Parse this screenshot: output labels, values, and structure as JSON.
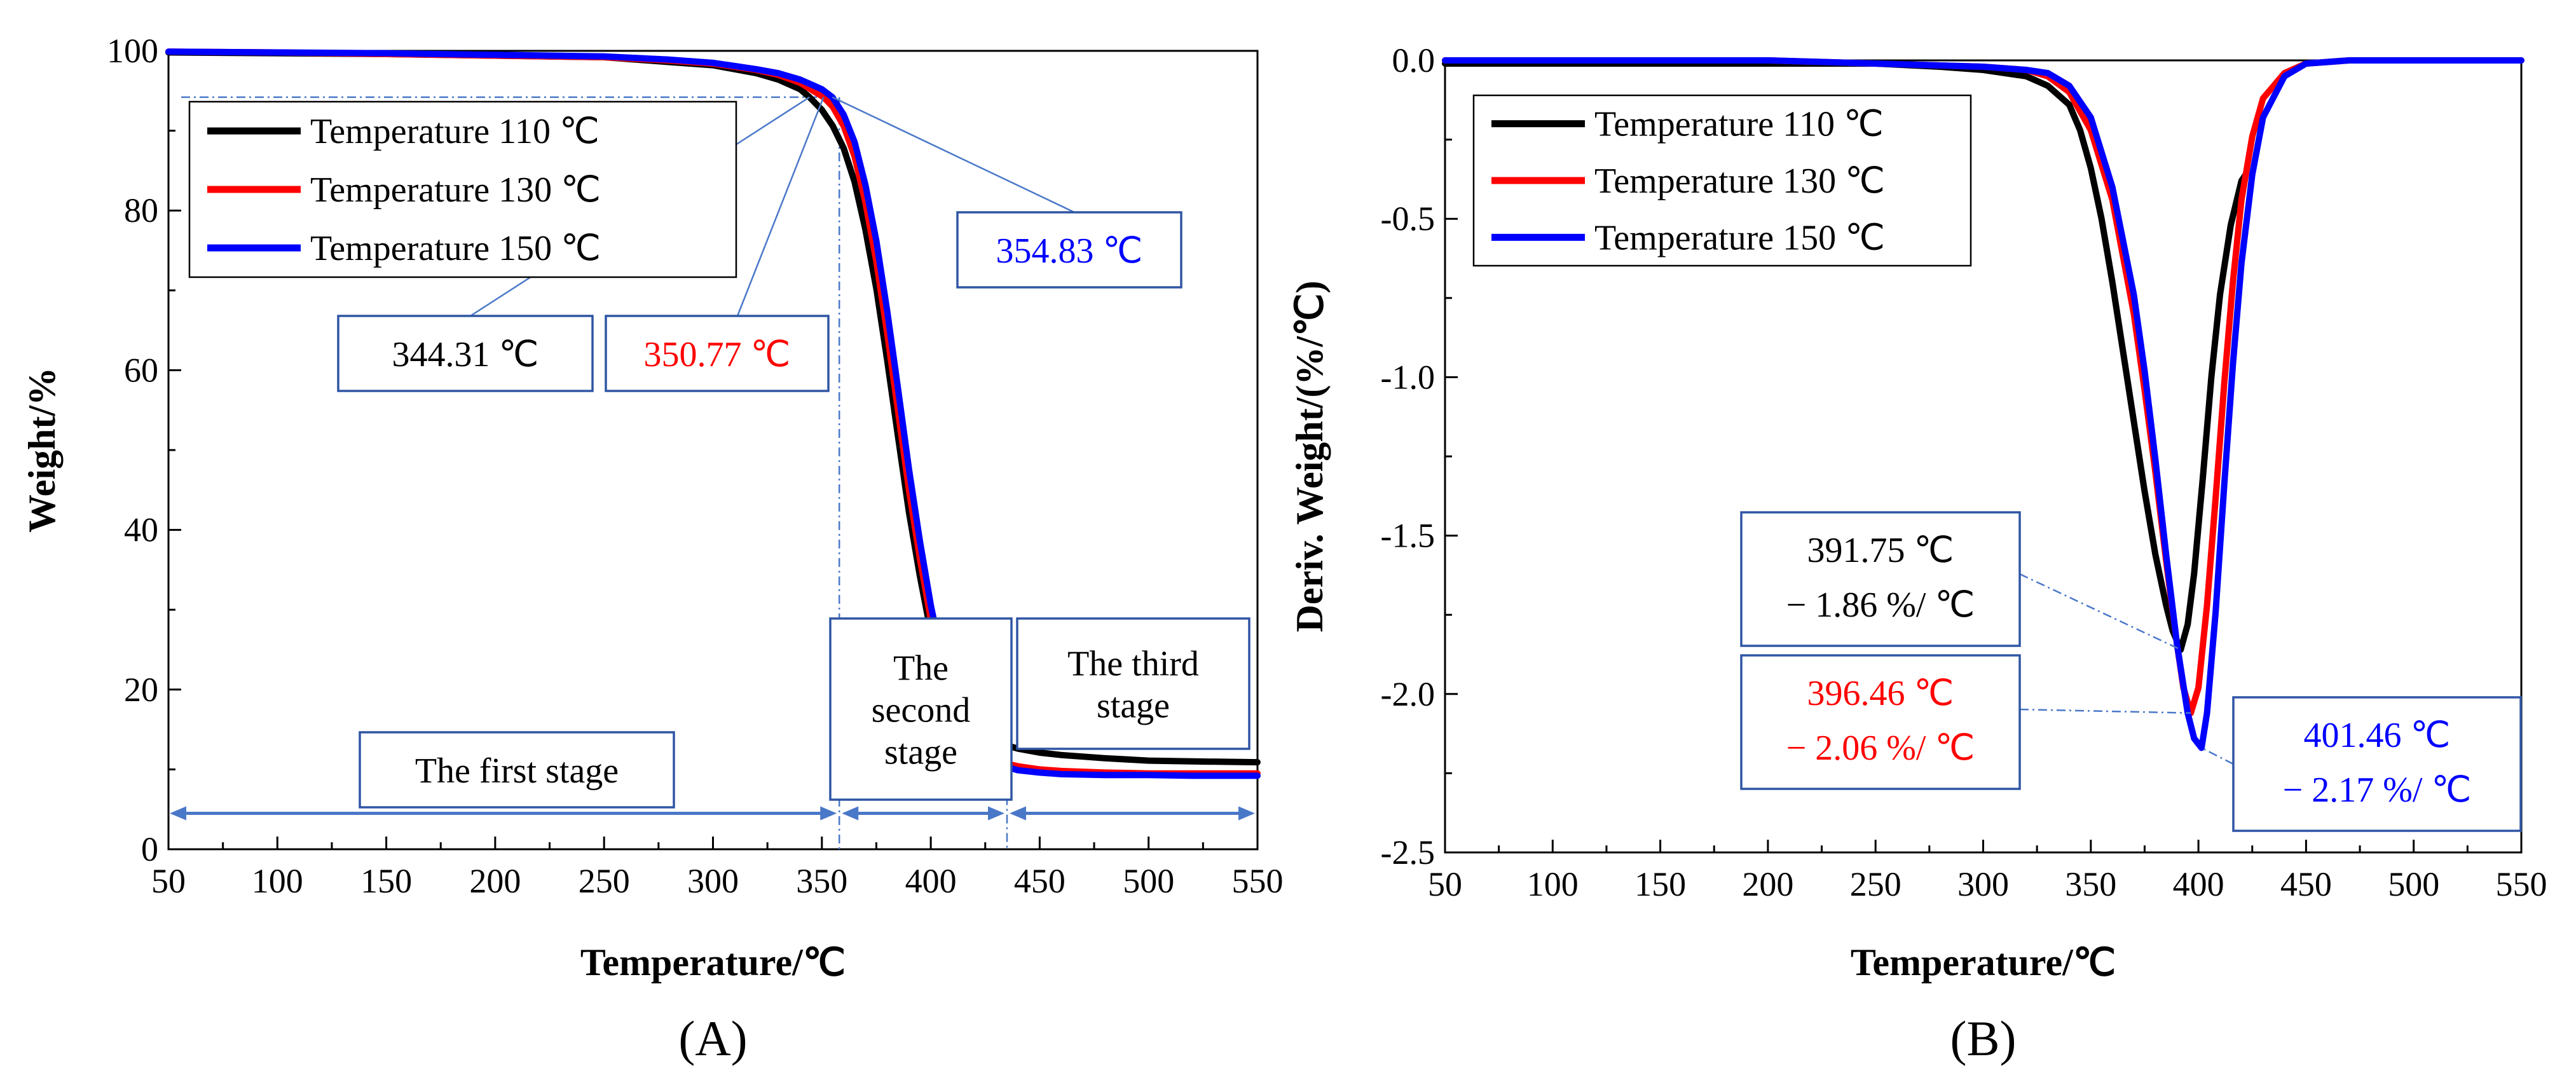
{
  "colors": {
    "series_110": "#000000",
    "series_130": "#ff0000",
    "series_150": "#0000ff",
    "annotation_border": "#2f55a4",
    "guide_line": "#4a78c8",
    "stage_arrow": "#4a78c8"
  },
  "chart_data": [
    {
      "panel": "A",
      "panel_label": "(A)",
      "type": "line",
      "xlabel": "Temperature/℃",
      "ylabel": "Weight/%",
      "xlim": [
        50,
        550
      ],
      "ylim": [
        0,
        100
      ],
      "xticks": [
        50,
        100,
        150,
        200,
        250,
        300,
        350,
        400,
        450,
        500,
        550
      ],
      "yticks": [
        0,
        20,
        40,
        60,
        80,
        100
      ],
      "legend_position": "top-left",
      "grid": false,
      "series": [
        {
          "name": "Temperature 110 ℃",
          "color": "#000000",
          "x": [
            50,
            100,
            150,
            200,
            250,
            280,
            300,
            320,
            330,
            340,
            344.31,
            350,
            355,
            360,
            365,
            370,
            375,
            380,
            385,
            390,
            395,
            400,
            405,
            410,
            415,
            420,
            425,
            430,
            435,
            440,
            450,
            460,
            480,
            500,
            520,
            550
          ],
          "y": [
            99.8,
            99.7,
            99.6,
            99.4,
            99.2,
            98.6,
            98.2,
            97.2,
            96.4,
            95.2,
            94.2,
            92.6,
            90.6,
            87.8,
            83.6,
            77.6,
            70.2,
            61.2,
            51.6,
            42.2,
            34.2,
            27.2,
            21.8,
            18.6,
            16.2,
            14.8,
            13.9,
            13.4,
            13.0,
            12.6,
            12.1,
            11.8,
            11.4,
            11.1,
            11.0,
            10.9
          ]
        },
        {
          "name": "Temperature 130 ℃",
          "color": "#ff0000",
          "x": [
            50,
            100,
            150,
            200,
            250,
            280,
            300,
            320,
            330,
            340,
            350.77,
            355,
            360,
            365,
            370,
            375,
            380,
            385,
            390,
            395,
            400,
            405,
            410,
            415,
            420,
            425,
            430,
            435,
            440,
            450,
            460,
            480,
            500,
            520,
            550
          ],
          "y": [
            99.9,
            99.8,
            99.6,
            99.4,
            99.2,
            98.8,
            98.4,
            97.6,
            97.0,
            96.0,
            94.2,
            93.0,
            90.6,
            86.8,
            81.0,
            73.6,
            64.6,
            54.8,
            45.0,
            36.4,
            28.8,
            22.6,
            18.2,
            15.2,
            13.2,
            12.0,
            11.2,
            10.7,
            10.4,
            10.0,
            9.8,
            9.6,
            9.5,
            9.5,
            9.5
          ]
        },
        {
          "name": "Temperature 150  ℃",
          "color": "#0000ff",
          "x": [
            50,
            100,
            150,
            200,
            250,
            280,
            300,
            320,
            330,
            340,
            350,
            354.83,
            360,
            365,
            370,
            375,
            380,
            385,
            390,
            395,
            400,
            405,
            410,
            415,
            420,
            425,
            430,
            435,
            440,
            450,
            460,
            480,
            500,
            520,
            550
          ],
          "y": [
            99.9,
            99.8,
            99.7,
            99.5,
            99.3,
            98.9,
            98.5,
            97.7,
            97.2,
            96.4,
            95.2,
            94.2,
            92.0,
            88.6,
            83.2,
            76.2,
            67.4,
            57.6,
            47.6,
            38.6,
            30.6,
            24.0,
            19.0,
            15.6,
            13.2,
            11.8,
            10.9,
            10.3,
            9.9,
            9.6,
            9.4,
            9.3,
            9.3,
            9.2,
            9.2
          ]
        }
      ],
      "onset_guide_y": 94.2,
      "annotations": [
        {
          "text": "344.31 ℃",
          "x": 344.31,
          "color": "#000000"
        },
        {
          "text": "350.77 ℃",
          "x": 350.77,
          "color": "#ff0000"
        },
        {
          "text": "354.83 ℃",
          "x": 354.83,
          "color": "#0000ff"
        }
      ],
      "stages": [
        {
          "lines": [
            "The first stage"
          ],
          "x_range": [
            50,
            358
          ]
        },
        {
          "lines": [
            "The",
            "second",
            "stage"
          ],
          "x_range": [
            358,
            435
          ]
        },
        {
          "lines": [
            "The third",
            "stage"
          ],
          "x_range": [
            435,
            550
          ]
        }
      ]
    },
    {
      "panel": "B",
      "panel_label": "(B)",
      "type": "line",
      "xlabel": "Temperature/℃",
      "ylabel": "Deriv. Weight/(%/℃)",
      "xlim": [
        50,
        550
      ],
      "ylim": [
        -2.5,
        0.0
      ],
      "xticks": [
        50,
        100,
        150,
        200,
        250,
        300,
        350,
        400,
        450,
        500,
        550
      ],
      "yticks": [
        0.0,
        -0.5,
        -1.0,
        -1.5,
        -2.0,
        -2.5
      ],
      "ytick_labels": [
        "0.0",
        "-0.5",
        "-1.0",
        "-1.5",
        "-2.0",
        "-2.5"
      ],
      "legend_position": "top-left",
      "grid": false,
      "series": [
        {
          "name": "Temperature 110 ℃",
          "color": "#000000",
          "x": [
            50,
            100,
            150,
            200,
            250,
            280,
            300,
            320,
            330,
            340,
            345,
            350,
            355,
            360,
            365,
            370,
            375,
            380,
            385,
            388,
            391.75,
            395,
            398,
            402,
            406,
            410,
            415,
            420,
            422
          ],
          "y": [
            -0.01,
            -0.01,
            -0.01,
            -0.01,
            -0.01,
            -0.02,
            -0.03,
            -0.05,
            -0.08,
            -0.14,
            -0.22,
            -0.34,
            -0.5,
            -0.7,
            -0.92,
            -1.14,
            -1.36,
            -1.56,
            -1.72,
            -1.8,
            -1.86,
            -1.78,
            -1.62,
            -1.32,
            -1.0,
            -0.74,
            -0.52,
            -0.38,
            -0.36
          ]
        },
        {
          "name": "Temperature 130 ℃",
          "color": "#ff0000",
          "x": [
            50,
            100,
            150,
            200,
            250,
            300,
            320,
            330,
            340,
            350,
            360,
            370,
            375,
            380,
            385,
            390,
            393,
            396.46,
            400,
            404,
            408,
            412,
            416,
            420,
            425,
            430,
            440,
            450,
            470,
            500,
            550
          ],
          "y": [
            0.0,
            0.0,
            0.0,
            0.0,
            -0.01,
            -0.02,
            -0.03,
            -0.05,
            -0.1,
            -0.22,
            -0.44,
            -0.8,
            -1.04,
            -1.3,
            -1.58,
            -1.84,
            -1.98,
            -2.06,
            -1.98,
            -1.72,
            -1.38,
            -1.02,
            -0.7,
            -0.44,
            -0.24,
            -0.12,
            -0.04,
            -0.01,
            0.0,
            0.0,
            0.0
          ]
        },
        {
          "name": "Temperature 150 ℃",
          "color": "#0000ff",
          "x": [
            50,
            100,
            150,
            200,
            250,
            300,
            320,
            330,
            340,
            350,
            360,
            370,
            375,
            380,
            385,
            390,
            395,
            398,
            401.46,
            404,
            408,
            412,
            416,
            420,
            425,
            430,
            440,
            450,
            470,
            500,
            550
          ],
          "y": [
            0.0,
            0.0,
            0.0,
            0.0,
            -0.01,
            -0.02,
            -0.03,
            -0.04,
            -0.08,
            -0.18,
            -0.4,
            -0.74,
            -0.98,
            -1.26,
            -1.56,
            -1.84,
            -2.06,
            -2.14,
            -2.17,
            -2.06,
            -1.74,
            -1.34,
            -0.96,
            -0.64,
            -0.36,
            -0.18,
            -0.05,
            -0.01,
            0.0,
            0.0,
            0.0
          ]
        }
      ],
      "annotations": [
        {
          "lines": [
            "391.75 ℃",
            "− 1.86 %/ ℃"
          ],
          "x": 391.75,
          "y": -1.86,
          "color": "#000000"
        },
        {
          "lines": [
            "396.46 ℃",
            "− 2.06 %/ ℃"
          ],
          "x": 396.46,
          "y": -2.06,
          "color": "#ff0000"
        },
        {
          "lines": [
            "401.46 ℃",
            "− 2.17 %/ ℃"
          ],
          "x": 401.46,
          "y": -2.17,
          "color": "#0000ff"
        }
      ]
    }
  ]
}
